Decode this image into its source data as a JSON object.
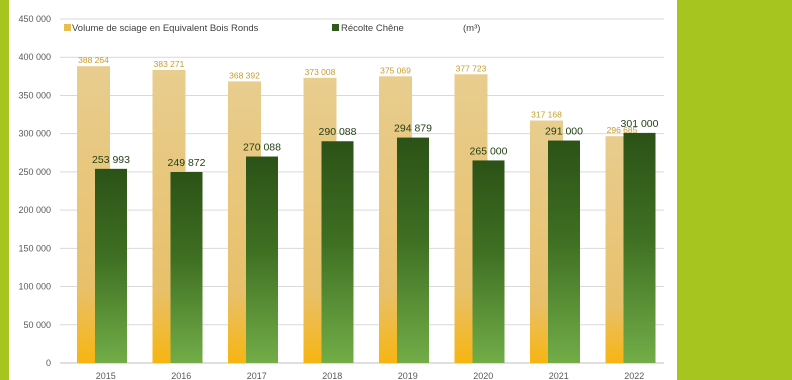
{
  "chart_data": {
    "type": "bar",
    "categories": [
      "2015",
      "2016",
      "2017",
      "2018",
      "2019",
      "2020",
      "2021",
      "2022"
    ],
    "series": [
      {
        "name": "Volume de sciage en Equivalent Bois Ronds",
        "values": [
          388264,
          383271,
          368392,
          373008,
          375069,
          377723,
          317168,
          296685
        ],
        "labels": [
          "388 264",
          "383 271",
          "368 392",
          "373 008",
          "375 069",
          "377 723",
          "317 168",
          "296 685"
        ],
        "color": "#e2bd6a"
      },
      {
        "name": "Récolte Chêne",
        "values": [
          253993,
          249872,
          270088,
          290088,
          294879,
          265000,
          291000,
          301000
        ],
        "labels": [
          "253 993",
          "249 872",
          "270 088",
          "290 088",
          "294 879",
          "265 000",
          "291 000",
          "301 000"
        ],
        "color": "#3a6b1f"
      }
    ],
    "unit": "(m³)",
    "ylim": [
      0,
      450000
    ],
    "yticks": [
      0,
      50000,
      100000,
      150000,
      200000,
      250000,
      300000,
      350000,
      400000,
      450000
    ],
    "ytick_labels": [
      "0",
      "50 000",
      "100 000",
      "150 000",
      "200 000",
      "250 000",
      "300 000",
      "350 000",
      "400 000",
      "450 000"
    ],
    "grid": true,
    "legend": "top"
  },
  "colors": {
    "accent_green": "#a6c51e",
    "gold_top": "#e6c98a",
    "gold_bottom": "#f6b817",
    "green_top": "#2f5619",
    "green_bottom": "#6ea845"
  }
}
